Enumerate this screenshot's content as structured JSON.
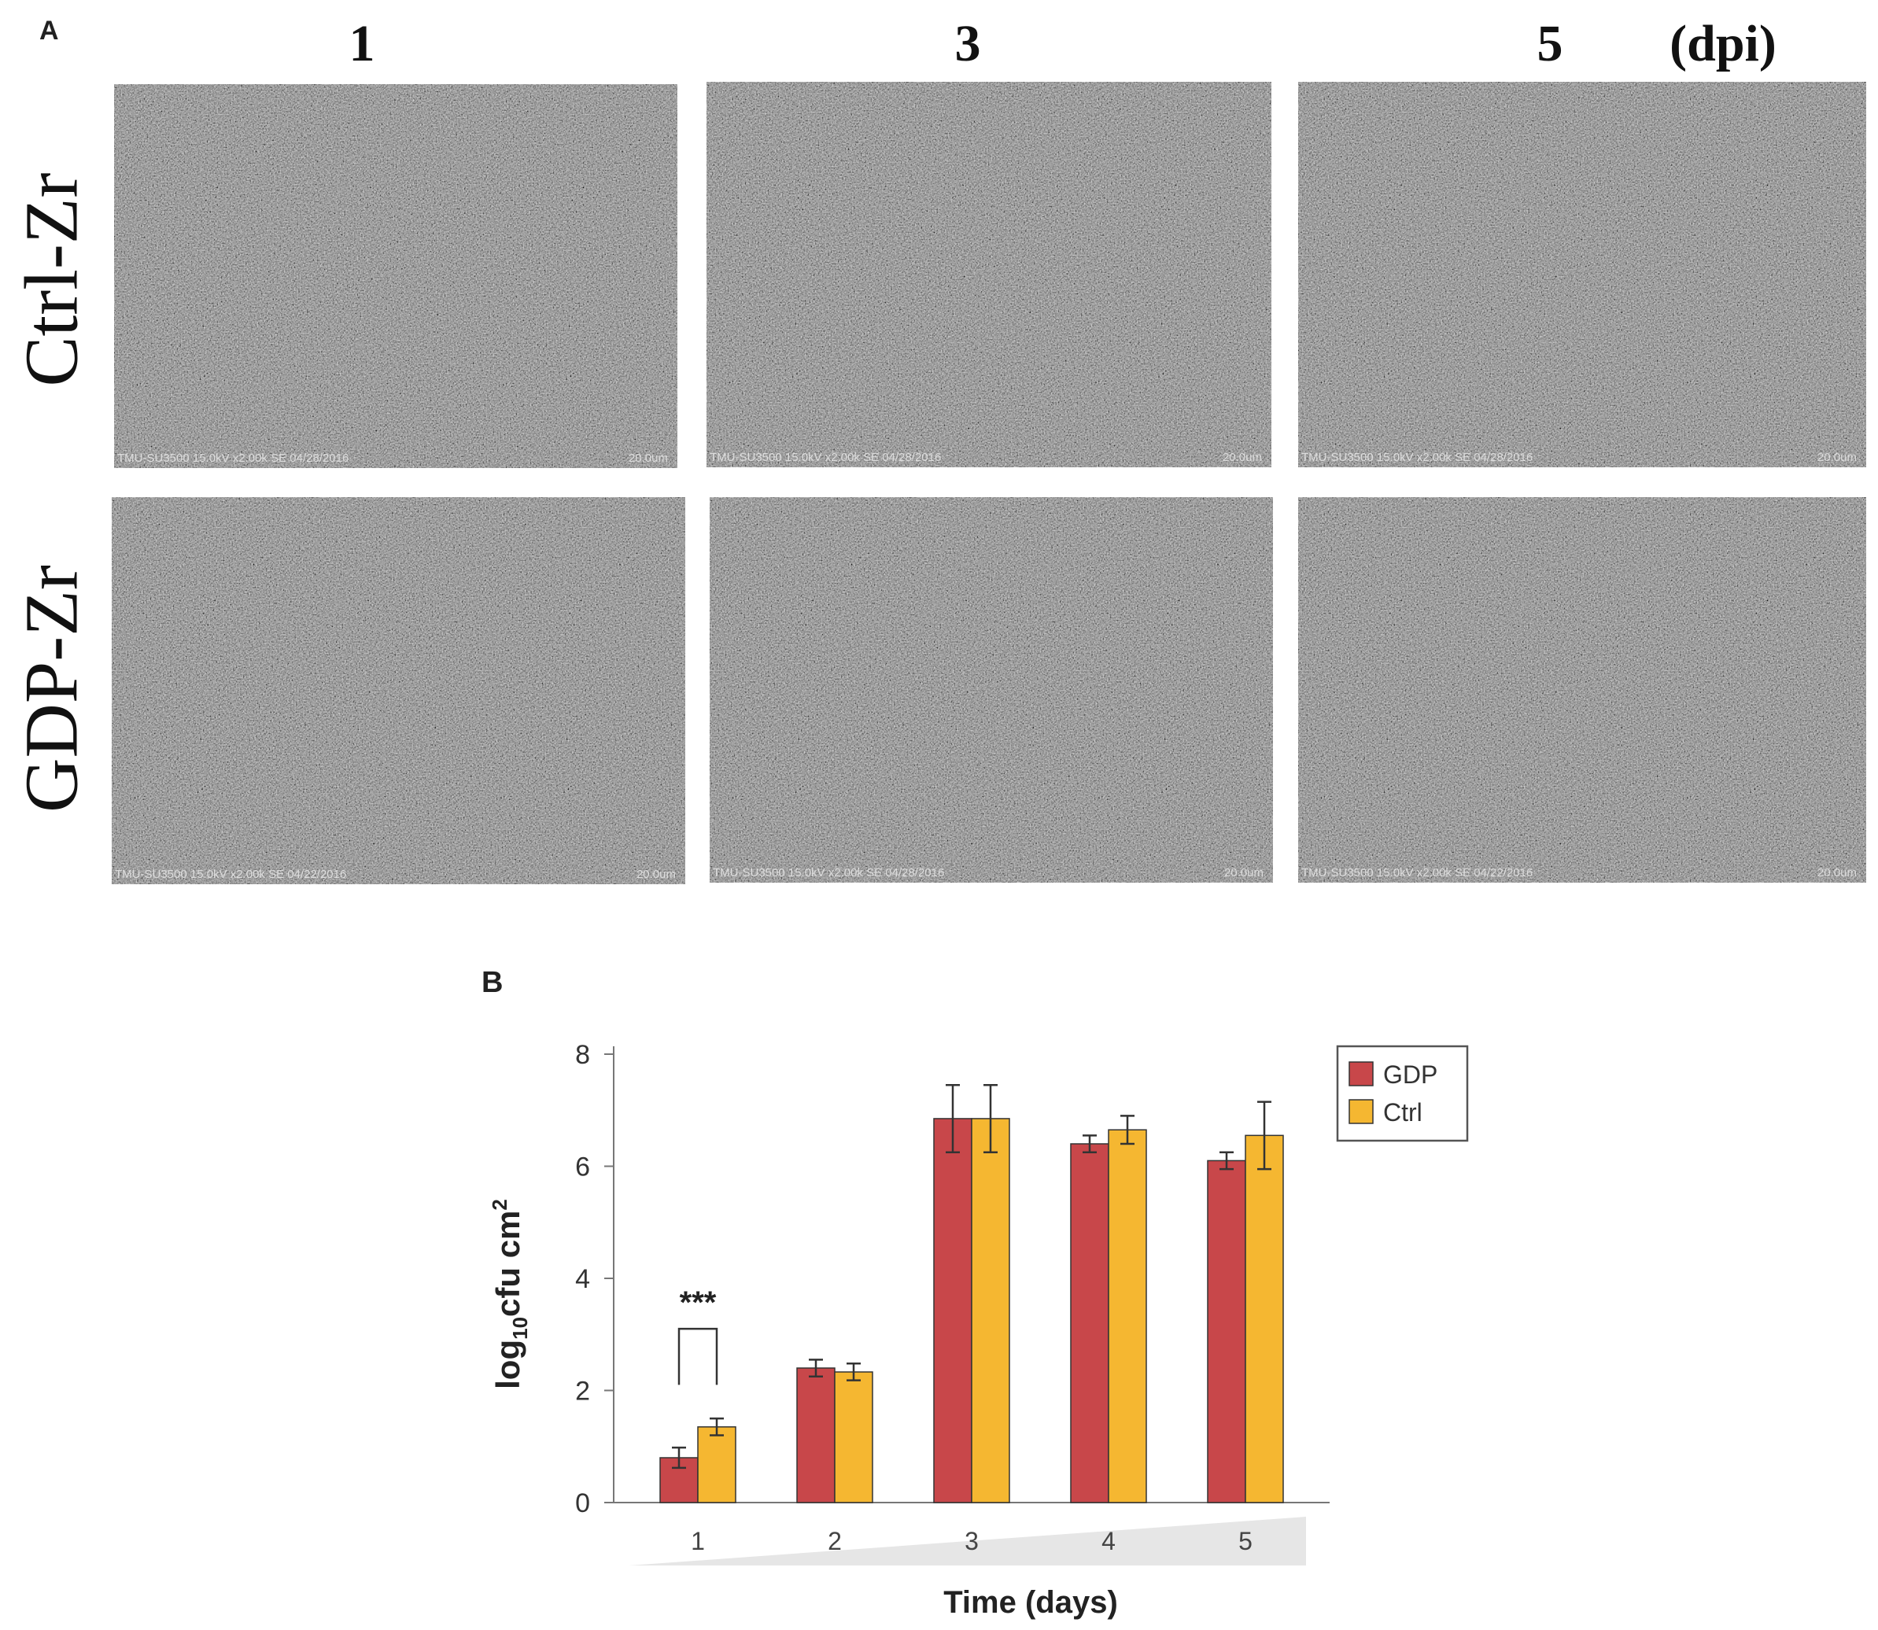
{
  "panel_a": {
    "letter": "A",
    "columns": [
      "1",
      "3",
      "5"
    ],
    "unit_label": "(dpi)",
    "rows": [
      "Ctrl-Zr",
      "GDP-Zr"
    ],
    "images": [
      {
        "row": "Ctrl-Zr",
        "col": "1",
        "info": "TMU-SU3500 15.0kV x2.00k SE 04/28/2016",
        "scale": "20.0um"
      },
      {
        "row": "Ctrl-Zr",
        "col": "3",
        "info": "TMU-SU3500 15.0kV x2.00k SE 04/28/2016",
        "scale": "20.0um"
      },
      {
        "row": "Ctrl-Zr",
        "col": "5",
        "info": "TMU-SU3500 15.0kV x2.00k SE 04/28/2016",
        "scale": "20.0um"
      },
      {
        "row": "GDP-Zr",
        "col": "1",
        "info": "TMU-SU3500 15.0kV x2.00k SE 04/22/2016",
        "scale": "20.0um"
      },
      {
        "row": "GDP-Zr",
        "col": "3",
        "info": "TMU-SU3500 15.0kV x2.00k SE 04/28/2016",
        "scale": "20.0um"
      },
      {
        "row": "GDP-Zr",
        "col": "5",
        "info": "TMU-SU3500 15.0kV x2.00k SE 04/22/2016",
        "scale": "20.0um"
      }
    ]
  },
  "chart_data": {
    "panel_letter": "B",
    "type": "bar",
    "categories": [
      "1",
      "2",
      "3",
      "4",
      "5"
    ],
    "series": [
      {
        "name": "GDP",
        "color": "#c8474a",
        "values": [
          0.8,
          2.4,
          6.85,
          6.4,
          6.1
        ],
        "errors": [
          0.18,
          0.15,
          0.6,
          0.15,
          0.15
        ]
      },
      {
        "name": "Ctrl",
        "color": "#f5b731",
        "values": [
          1.35,
          2.33,
          6.85,
          6.65,
          6.55
        ],
        "errors": [
          0.15,
          0.15,
          0.6,
          0.25,
          0.6
        ]
      }
    ],
    "xlabel": "Time (days)",
    "ylabel": {
      "main": "log",
      "sub": "10",
      "rest": "cfu cm",
      "sup": "2"
    },
    "ylim": [
      0,
      8
    ],
    "yticks": [
      0,
      2,
      4,
      6,
      8
    ],
    "legend_position": "top-right",
    "grid": false,
    "annotations": [
      {
        "category": "1",
        "text": "***",
        "type": "significance-bracket"
      }
    ]
  }
}
